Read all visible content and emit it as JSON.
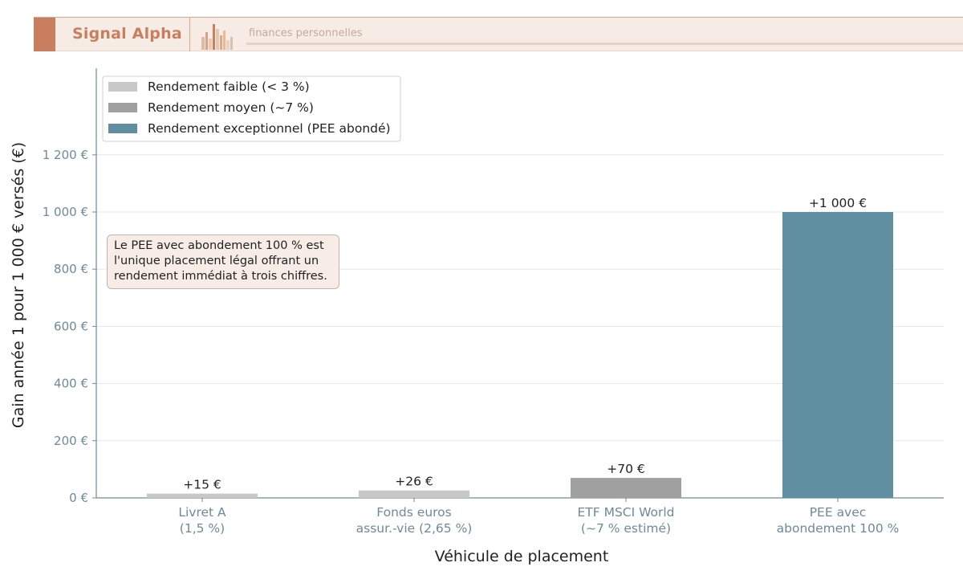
{
  "brand": {
    "name": "Signal Alpha",
    "tagline": "finances personnelles",
    "accent": "#c97e5f"
  },
  "chart_data": {
    "type": "bar",
    "categories": [
      "Livret A\n(1,5 %)",
      "Fonds euros\nassur.-vie (2,65 %)",
      "ETF MSCI World\n(~7 % estimé)",
      "PEE avec\nabondement 100 %"
    ],
    "values": [
      15,
      26,
      70,
      1000
    ],
    "value_labels": [
      "+15 €",
      "+26 €",
      "+70 €",
      "+1 000 €"
    ],
    "bar_classes": [
      "faible",
      "faible",
      "moyen",
      "exceptionnel"
    ],
    "xlabel": "Véhicule de placement",
    "ylabel": "Gain année 1 pour 1 000 € versés (€)",
    "ylim": [
      0,
      1400
    ],
    "yticks": [
      0,
      200,
      400,
      600,
      800,
      1000,
      1200
    ],
    "ytick_labels": [
      "0 €",
      "200 €",
      "400 €",
      "600 €",
      "800 €",
      "1 000 €",
      "1 200 €"
    ],
    "grid": "horizontal",
    "legend_position": "top-left",
    "legend": [
      {
        "key": "faible",
        "label": "Rendement faible (< 3 %)",
        "color": "#c8c8c8"
      },
      {
        "key": "moyen",
        "label": "Rendement moyen (~7 %)",
        "color": "#a0a0a0"
      },
      {
        "key": "exceptionnel",
        "label": "Rendement exceptionnel (PEE abondé)",
        "color": "#5f8fa0"
      }
    ],
    "annotation": "Le PEE avec abondement 100 % est l'unique placement légal offrant un rendement immédiat à trois chiffres."
  }
}
